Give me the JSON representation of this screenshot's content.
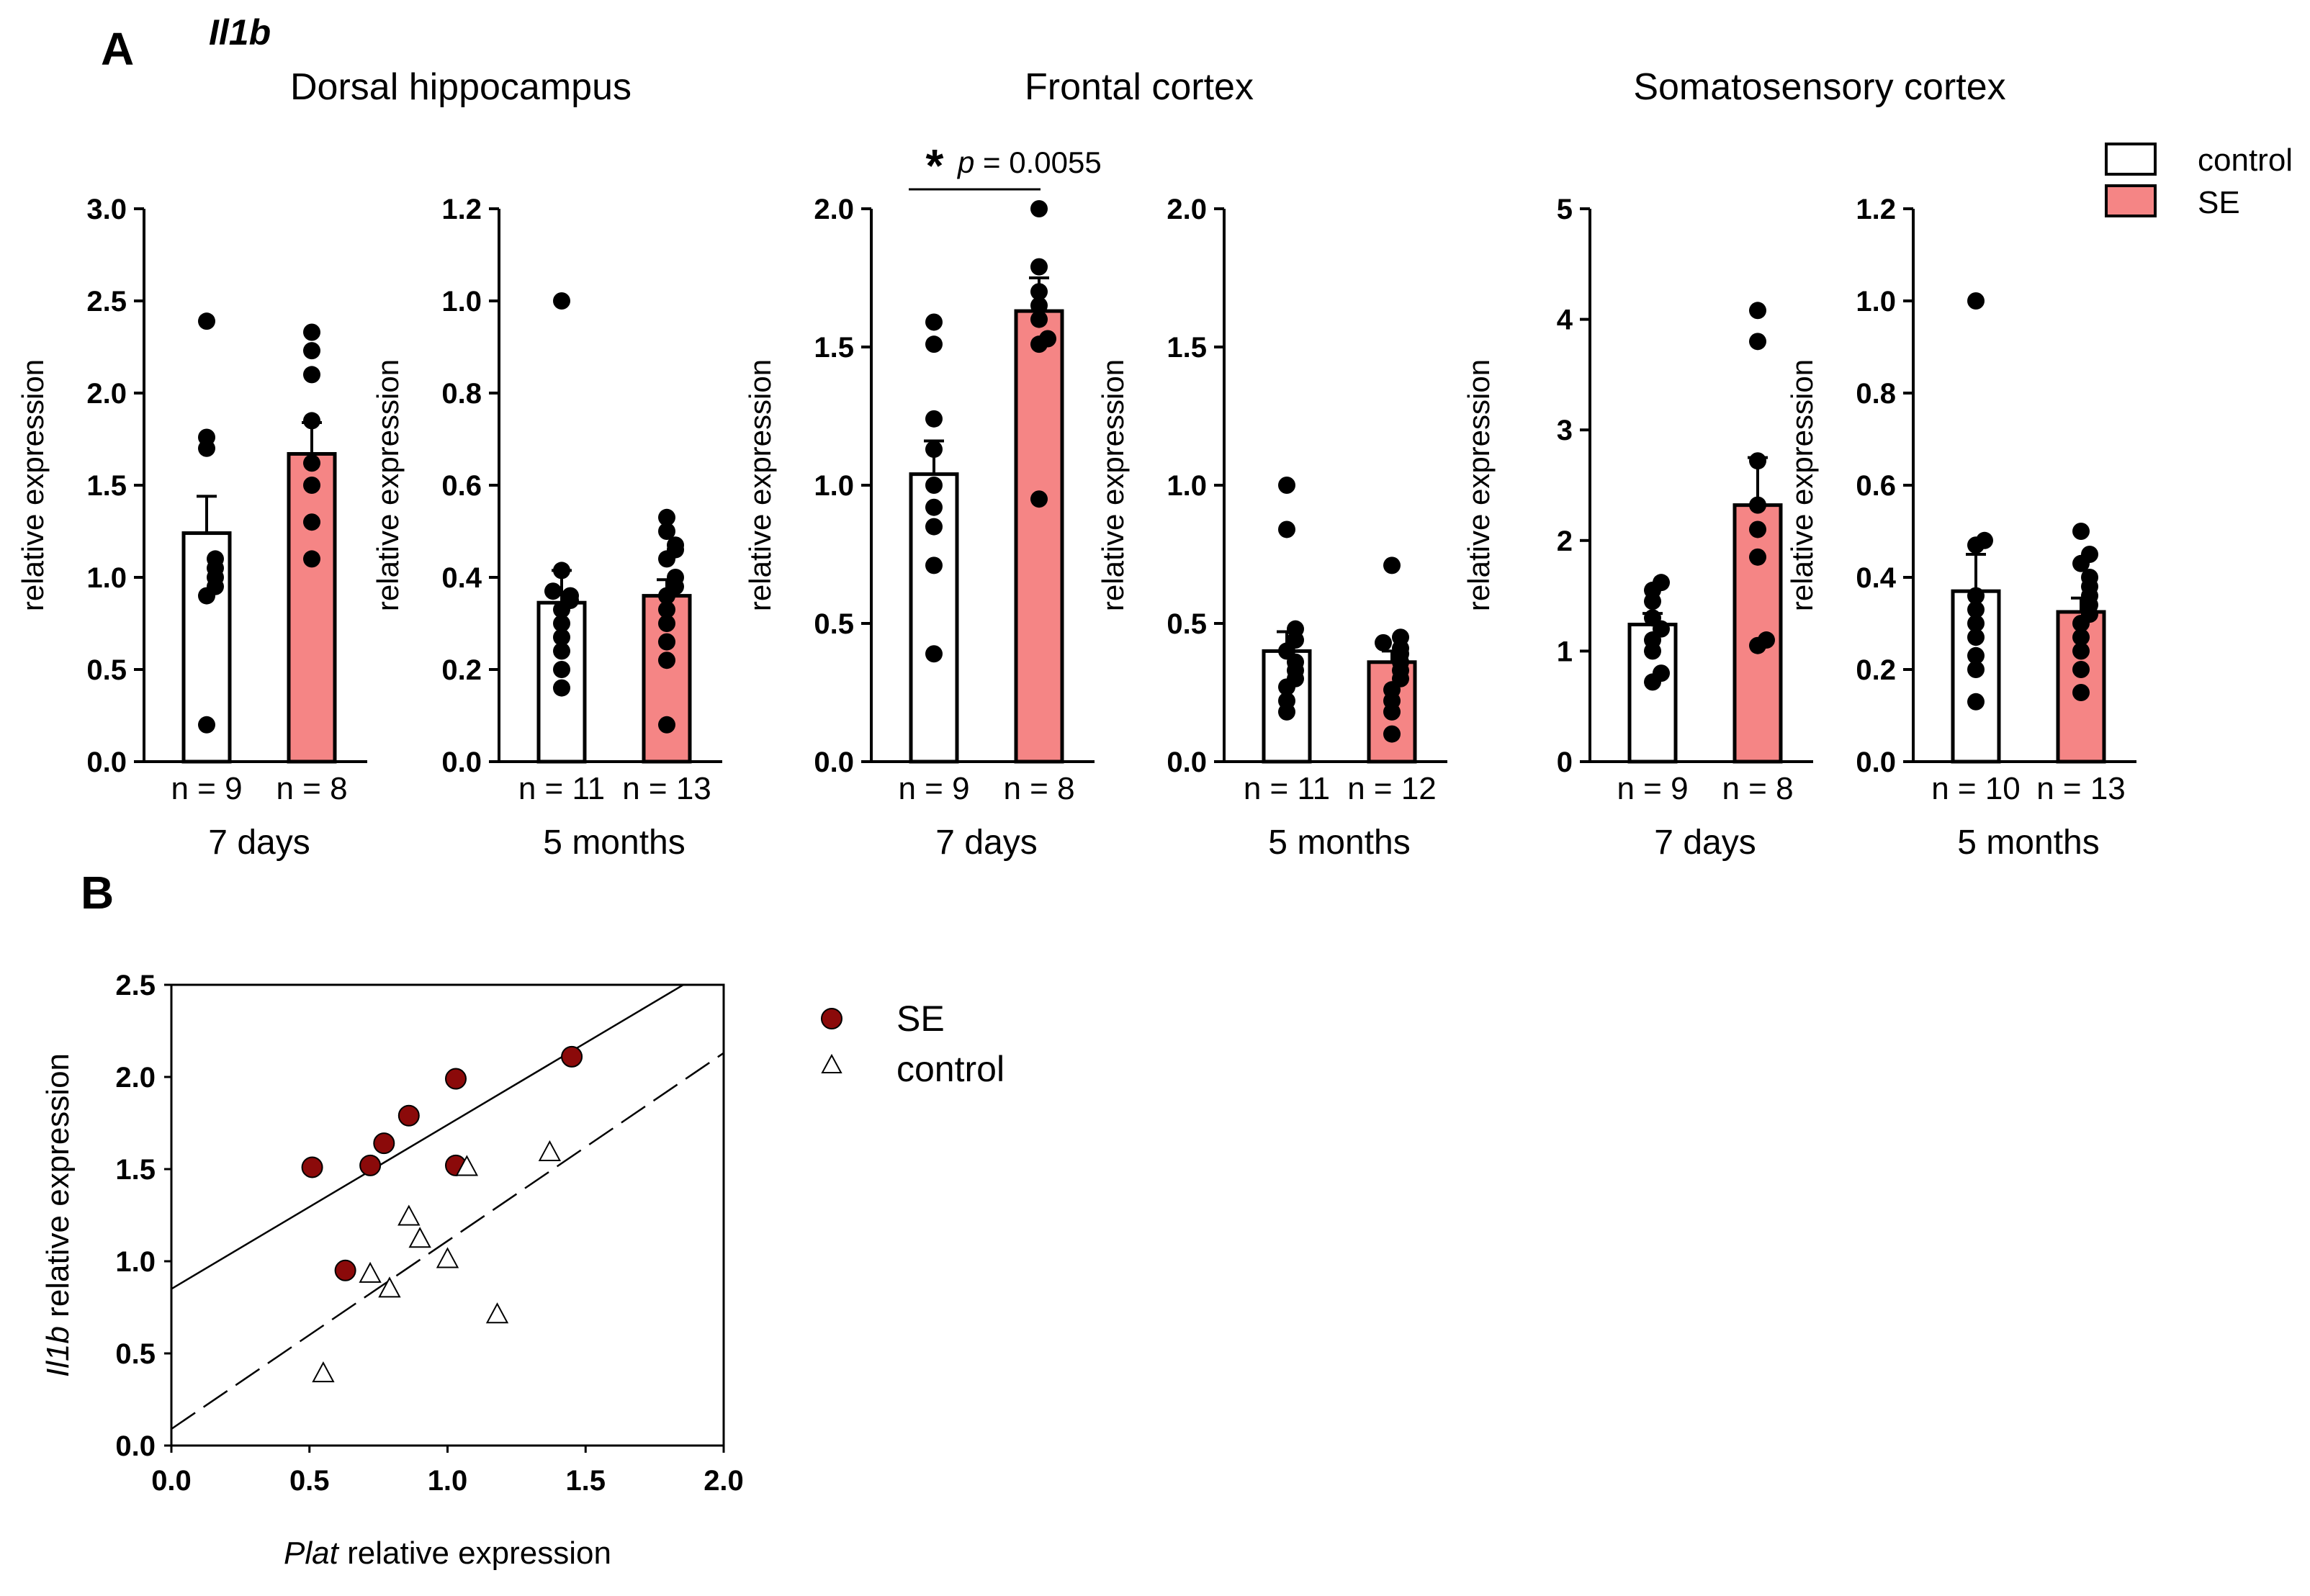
{
  "panel_labels": {
    "a": "A",
    "b": "B"
  },
  "gene_title": "Il1b",
  "regions": [
    "Dorsal hippocampus",
    "Frontal cortex",
    "Somatosensory cortex"
  ],
  "legend_a": {
    "control": "control",
    "se": "SE"
  },
  "significance": {
    "star": "*",
    "p_symbol": "p",
    "p_rest": " = 0.0055"
  },
  "colors": {
    "control": "#ffffff",
    "se": "#f58585",
    "dot": "#000000",
    "se_scatter": "#8b0a0a",
    "axis": "#000000"
  },
  "chart_data": [
    {
      "type": "bar",
      "id": "dh7",
      "region": "Dorsal hippocampus",
      "timepoint": "7 days",
      "ylabel": "relative expression",
      "ylim": [
        0,
        3.0
      ],
      "yticks": [
        "0.0",
        "0.5",
        "1.0",
        "1.5",
        "2.0",
        "2.5",
        "3.0"
      ],
      "groups": [
        {
          "name": "control",
          "n_label": "n = 9",
          "mean": 1.24,
          "sem": 0.2,
          "points": [
            0.2,
            0.9,
            0.95,
            1.0,
            1.05,
            1.1,
            1.7,
            1.76,
            2.39
          ]
        },
        {
          "name": "SE",
          "n_label": "n = 8",
          "mean": 1.67,
          "sem": 0.17,
          "points": [
            1.1,
            1.3,
            1.5,
            1.62,
            2.1,
            2.23,
            2.33,
            1.85
          ]
        }
      ]
    },
    {
      "type": "bar",
      "id": "dh5",
      "region": "Dorsal hippocampus",
      "timepoint": "5 months",
      "ylabel": "relative expression",
      "ylim": [
        0,
        1.2
      ],
      "yticks": [
        "0.0",
        "0.2",
        "0.4",
        "0.6",
        "0.8",
        "1.0",
        "1.2"
      ],
      "groups": [
        {
          "name": "control",
          "n_label": "n = 11",
          "mean": 0.345,
          "sem": 0.07,
          "points": [
            0.16,
            0.2,
            0.24,
            0.27,
            0.3,
            0.33,
            0.35,
            0.36,
            0.37,
            0.415,
            1.0
          ]
        },
        {
          "name": "SE",
          "n_label": "n = 13",
          "mean": 0.36,
          "sem": 0.035,
          "points": [
            0.08,
            0.22,
            0.26,
            0.3,
            0.33,
            0.36,
            0.38,
            0.4,
            0.44,
            0.46,
            0.47,
            0.5,
            0.53
          ]
        }
      ]
    },
    {
      "type": "bar",
      "id": "fc7",
      "region": "Frontal cortex",
      "timepoint": "7 days",
      "ylabel": "relative expression",
      "ylim": [
        0,
        2.0
      ],
      "yticks": [
        "0.0",
        "0.5",
        "1.0",
        "1.5",
        "2.0"
      ],
      "groups": [
        {
          "name": "control",
          "n_label": "n = 9",
          "mean": 1.04,
          "sem": 0.12,
          "points": [
            0.39,
            0.71,
            0.85,
            1.0,
            1.13,
            1.24,
            1.51,
            1.59,
            0.92
          ]
        },
        {
          "name": "SE",
          "n_label": "n = 8",
          "mean": 1.63,
          "sem": 0.12,
          "points": [
            0.95,
            1.51,
            1.53,
            1.65,
            1.79,
            2.0,
            1.7,
            1.6
          ]
        }
      ]
    },
    {
      "type": "bar",
      "id": "fc5",
      "region": "Frontal cortex",
      "timepoint": "5 months",
      "ylabel": "relative expression",
      "ylim": [
        0,
        2.0
      ],
      "yticks": [
        "0.0",
        "0.5",
        "1.0",
        "1.5",
        "2.0"
      ],
      "groups": [
        {
          "name": "control",
          "n_label": "n = 11",
          "mean": 0.4,
          "sem": 0.07,
          "points": [
            0.18,
            0.22,
            0.27,
            0.3,
            0.33,
            0.36,
            0.4,
            0.44,
            0.48,
            0.84,
            1.0
          ]
        },
        {
          "name": "SE",
          "n_label": "n = 12",
          "mean": 0.36,
          "sem": 0.04,
          "points": [
            0.1,
            0.18,
            0.22,
            0.26,
            0.3,
            0.33,
            0.36,
            0.39,
            0.41,
            0.43,
            0.45,
            0.71
          ]
        }
      ]
    },
    {
      "type": "bar",
      "id": "ss7",
      "region": "Somatosensory cortex",
      "timepoint": "7 days",
      "ylabel": "relative expression",
      "ylim": [
        0,
        5
      ],
      "yticks": [
        "0",
        "1",
        "2",
        "3",
        "4",
        "5"
      ],
      "groups": [
        {
          "name": "control",
          "n_label": "n = 9",
          "mean": 1.24,
          "sem": 0.1,
          "points": [
            0.72,
            0.8,
            1.0,
            1.1,
            1.2,
            1.3,
            1.45,
            1.55,
            1.62
          ]
        },
        {
          "name": "SE",
          "n_label": "n = 8",
          "mean": 2.32,
          "sem": 0.43,
          "points": [
            1.05,
            1.1,
            1.85,
            2.32,
            2.72,
            3.8,
            4.08,
            2.1
          ]
        }
      ]
    },
    {
      "type": "bar",
      "id": "ss5",
      "region": "Somatosensory cortex",
      "timepoint": "5 months",
      "ylabel": "relative expression",
      "ylim": [
        0,
        1.2
      ],
      "yticks": [
        "0.0",
        "0.2",
        "0.4",
        "0.6",
        "0.8",
        "1.0",
        "1.2"
      ],
      "groups": [
        {
          "name": "control",
          "n_label": "n = 10",
          "mean": 0.37,
          "sem": 0.08,
          "points": [
            0.13,
            0.2,
            0.23,
            0.27,
            0.3,
            0.33,
            0.36,
            0.47,
            0.48,
            1.0
          ]
        },
        {
          "name": "SE",
          "n_label": "n = 13",
          "mean": 0.325,
          "sem": 0.03,
          "points": [
            0.15,
            0.2,
            0.24,
            0.27,
            0.3,
            0.32,
            0.34,
            0.36,
            0.38,
            0.4,
            0.43,
            0.45,
            0.5
          ]
        }
      ]
    },
    {
      "type": "scatter",
      "id": "corr",
      "xlabel_italic": "Plat",
      "xlabel_rest": " relative expression",
      "ylabel_italic": "Il1b",
      "ylabel_rest": " relative expression",
      "xlim": [
        0,
        2.0
      ],
      "ylim": [
        0,
        2.5
      ],
      "xticks": [
        "0.0",
        "0.5",
        "1.0",
        "1.5",
        "2.0"
      ],
      "yticks": [
        "0.0",
        "0.5",
        "1.0",
        "1.5",
        "2.0",
        "2.5"
      ],
      "series": [
        {
          "name": "SE",
          "marker": "circle",
          "x": [
            0.51,
            0.63,
            0.72,
            0.77,
            0.86,
            1.03,
            1.03,
            1.45
          ],
          "y": [
            1.51,
            0.95,
            1.52,
            1.64,
            1.79,
            1.99,
            1.52,
            2.11
          ],
          "fit": {
            "intercept": 0.85,
            "slope": 0.89
          }
        },
        {
          "name": "control",
          "marker": "triangle",
          "x": [
            0.55,
            0.72,
            0.79,
            0.86,
            0.9,
            1.0,
            1.07,
            1.18,
            1.37
          ],
          "y": [
            0.39,
            0.93,
            0.85,
            1.24,
            1.12,
            1.01,
            1.51,
            0.71,
            1.59
          ],
          "fit": {
            "intercept": 0.09,
            "slope": 1.02
          }
        }
      ]
    }
  ]
}
